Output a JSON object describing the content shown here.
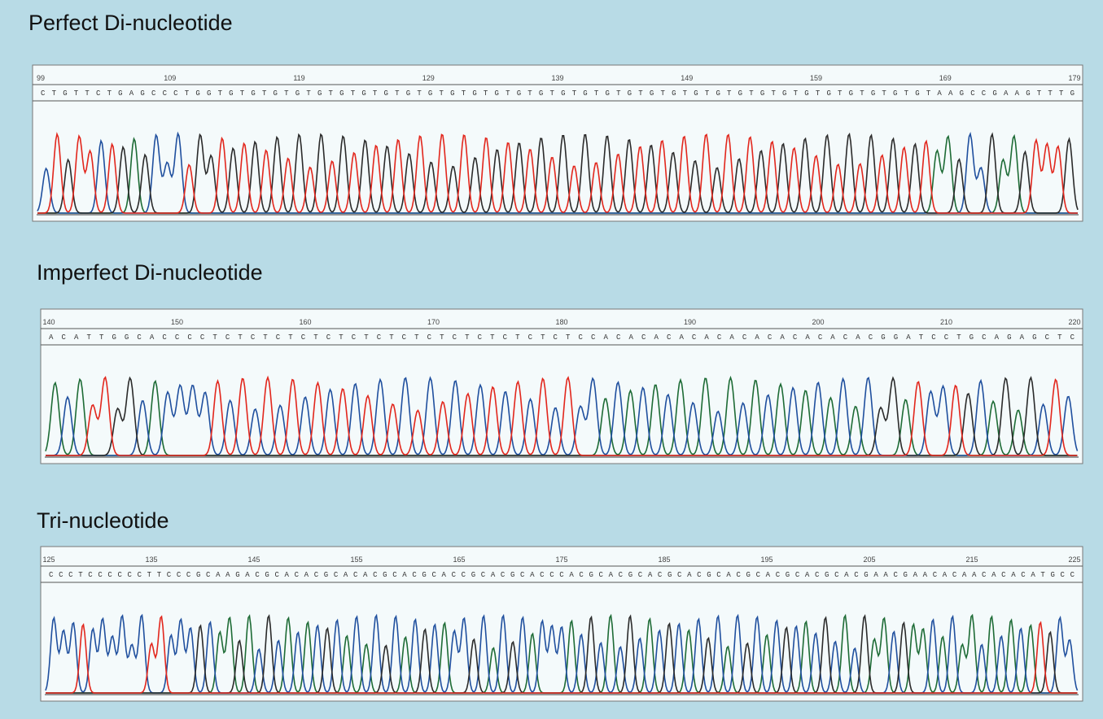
{
  "panels": [
    {
      "title": "Perfect Di-nucleotide",
      "positions": [
        99,
        109,
        119,
        129,
        139,
        149,
        159,
        169,
        179
      ],
      "sequence": "CTGTTCTGAGCCCTGGTGTGTGTGTGTGTGTGTGTGTGTGTGTGTGTGTGTGTGTGTGTGTGTGTGTGTGTGTGTGTGTGTAAGCCGAAGTTTG"
    },
    {
      "title": "Imperfect Di-nucleotide",
      "positions": [
        140,
        150,
        160,
        170,
        180,
        190,
        200,
        210,
        220
      ],
      "sequence": "ACATTGGCACCCCTCTCTCTCTCTCTCTCTCTCTCTCTCTCTCCACACACACACACACACACACACGGATCCTGCAGAGCTC"
    },
    {
      "title": "Tri-nucleotide",
      "positions": [
        125,
        135,
        145,
        155,
        165,
        175,
        185,
        195,
        205,
        215,
        225
      ],
      "sequence": "CCCTCCCCCCTTCCCGCAAGACGCACACGCACACGCACGCACCGCACGCACCCACGCACGCACGCACGCACGCACGCACGCACGAACGAACACAACACACATGCC"
    }
  ],
  "base_colors": {
    "A": "#1d6b35",
    "C": "#1f4f9e",
    "G": "#2a2a2a",
    "T": "#e2261c"
  }
}
